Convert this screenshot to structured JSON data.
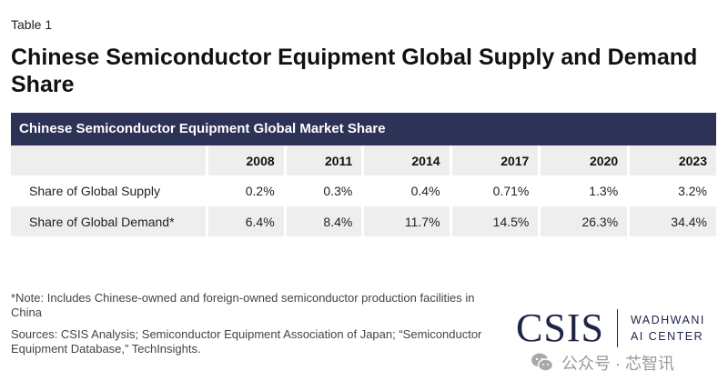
{
  "table_label": "Table 1",
  "title": "Chinese Semiconductor Equipment Global Supply and Demand Share",
  "table": {
    "header": "Chinese Semiconductor Equipment Global Market Share",
    "columns": [
      "",
      "2008",
      "2011",
      "2014",
      "2017",
      "2020",
      "2023"
    ],
    "rows": [
      {
        "label": "Share of Global Supply",
        "values": [
          "0.2%",
          "0.3%",
          "0.4%",
          "0.71%",
          "1.3%",
          "3.2%"
        ]
      },
      {
        "label": "Share of Global Demand*",
        "values": [
          "6.4%",
          "8.4%",
          "11.7%",
          "14.5%",
          "26.3%",
          "34.4%"
        ]
      }
    ]
  },
  "notes": {
    "note": "*Note: Includes Chinese-owned and foreign-owned semiconductor production facilities in China",
    "sources": "Sources: CSIS Analysis; Semiconductor Equipment Association of Japan; “Semiconductor Equipment Database,” TechInsights."
  },
  "logo": {
    "main": "CSIS",
    "line1": "WADHWANI",
    "line2": "AI CENTER"
  },
  "watermark": {
    "text": "公众号 · 芯智讯",
    "icon": "wechat-icon"
  }
}
